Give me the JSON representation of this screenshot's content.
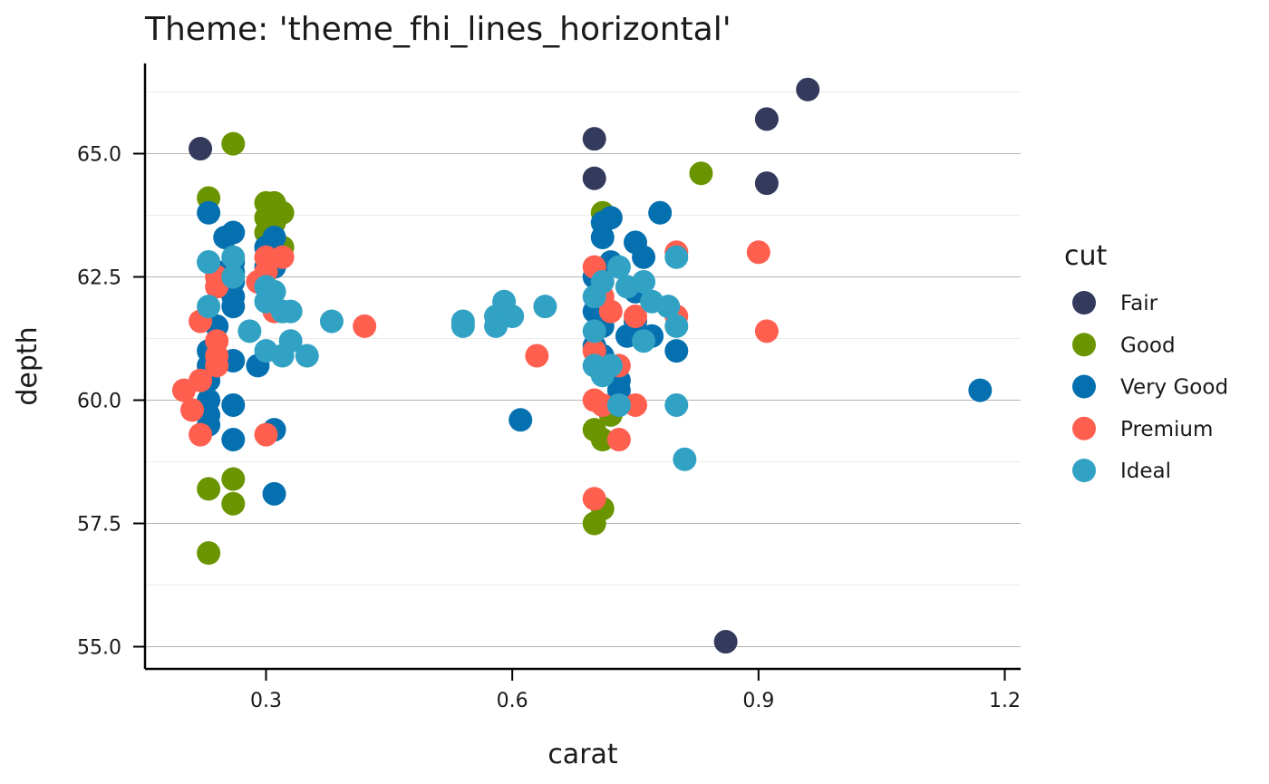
{
  "chart_data": {
    "type": "scatter",
    "title": "Theme: 'theme_fhi_lines_horizontal'",
    "xlabel": "carat",
    "ylabel": "depth",
    "xlim": [
      0.15,
      1.22
    ],
    "ylim": [
      54.6,
      66.7
    ],
    "x_ticks": [
      0.3,
      0.6,
      0.9,
      1.2
    ],
    "x_tick_labels": [
      "0.3",
      "0.6",
      "0.9",
      "1.2"
    ],
    "y_ticks": [
      55.0,
      57.5,
      60.0,
      62.5,
      65.0
    ],
    "y_tick_labels": [
      "55.0",
      "57.5",
      "60.0",
      "62.5",
      "65.0"
    ],
    "y_minor_gridlines": [
      56.25,
      58.75,
      61.25,
      63.75,
      66.25
    ],
    "grid": "horizontal lines only",
    "legend": {
      "title": "cut",
      "position": "right"
    },
    "series": [
      {
        "name": "Fair",
        "color": "#333a5c",
        "points": [
          [
            0.22,
            65.1
          ],
          [
            0.7,
            65.3
          ],
          [
            0.7,
            64.5
          ],
          [
            0.86,
            55.1
          ],
          [
            0.91,
            65.7
          ],
          [
            0.91,
            64.4
          ],
          [
            0.96,
            66.3
          ]
        ]
      },
      {
        "name": "Good",
        "color": "#6a9500",
        "points": [
          [
            0.23,
            56.9
          ],
          [
            0.23,
            58.2
          ],
          [
            0.23,
            64.1
          ],
          [
            0.26,
            57.9
          ],
          [
            0.26,
            58.4
          ],
          [
            0.26,
            65.2
          ],
          [
            0.3,
            64.0
          ],
          [
            0.3,
            63.7
          ],
          [
            0.3,
            63.4
          ],
          [
            0.31,
            64.0
          ],
          [
            0.31,
            63.6
          ],
          [
            0.32,
            63.8
          ],
          [
            0.32,
            63.1
          ],
          [
            0.7,
            57.5
          ],
          [
            0.7,
            59.4
          ],
          [
            0.71,
            57.8
          ],
          [
            0.71,
            59.2
          ],
          [
            0.71,
            63.8
          ],
          [
            0.72,
            59.7
          ],
          [
            0.83,
            64.6
          ]
        ]
      },
      {
        "name": "Very Good",
        "color": "#0570b0",
        "points": [
          [
            0.23,
            63.8
          ],
          [
            0.23,
            62.8
          ],
          [
            0.23,
            61.0
          ],
          [
            0.23,
            60.7
          ],
          [
            0.23,
            60.4
          ],
          [
            0.23,
            60.0
          ],
          [
            0.23,
            59.7
          ],
          [
            0.23,
            59.5
          ],
          [
            0.24,
            62.6
          ],
          [
            0.24,
            61.5
          ],
          [
            0.24,
            60.9
          ],
          [
            0.25,
            63.3
          ],
          [
            0.25,
            62.3
          ],
          [
            0.26,
            63.4
          ],
          [
            0.26,
            62.8
          ],
          [
            0.26,
            62.6
          ],
          [
            0.26,
            62.4
          ],
          [
            0.26,
            62.1
          ],
          [
            0.26,
            61.9
          ],
          [
            0.26,
            60.8
          ],
          [
            0.26,
            59.9
          ],
          [
            0.26,
            59.2
          ],
          [
            0.29,
            60.7
          ],
          [
            0.3,
            63.1
          ],
          [
            0.3,
            62.7
          ],
          [
            0.31,
            63.3
          ],
          [
            0.31,
            62.7
          ],
          [
            0.31,
            59.4
          ],
          [
            0.31,
            58.1
          ],
          [
            0.32,
            61.8
          ],
          [
            0.61,
            59.6
          ],
          [
            0.7,
            62.5
          ],
          [
            0.7,
            61.8
          ],
          [
            0.7,
            61.1
          ],
          [
            0.71,
            63.6
          ],
          [
            0.71,
            63.3
          ],
          [
            0.71,
            62.6
          ],
          [
            0.71,
            61.5
          ],
          [
            0.71,
            60.9
          ],
          [
            0.72,
            63.7
          ],
          [
            0.72,
            62.8
          ],
          [
            0.72,
            60.6
          ],
          [
            0.73,
            60.4
          ],
          [
            0.73,
            60.2
          ],
          [
            0.73,
            59.9
          ],
          [
            0.74,
            61.3
          ],
          [
            0.75,
            63.2
          ],
          [
            0.75,
            62.2
          ],
          [
            0.75,
            61.6
          ],
          [
            0.76,
            62.9
          ],
          [
            0.77,
            61.3
          ],
          [
            0.78,
            63.8
          ],
          [
            0.8,
            61.0
          ],
          [
            1.17,
            60.2
          ]
        ]
      },
      {
        "name": "Premium",
        "color": "#ff5f4f",
        "points": [
          [
            0.2,
            60.2
          ],
          [
            0.21,
            59.8
          ],
          [
            0.22,
            61.6
          ],
          [
            0.22,
            60.4
          ],
          [
            0.22,
            59.3
          ],
          [
            0.24,
            62.5
          ],
          [
            0.24,
            62.3
          ],
          [
            0.24,
            61.2
          ],
          [
            0.24,
            60.9
          ],
          [
            0.24,
            60.7
          ],
          [
            0.29,
            62.4
          ],
          [
            0.3,
            62.9
          ],
          [
            0.3,
            62.6
          ],
          [
            0.3,
            62.3
          ],
          [
            0.3,
            59.3
          ],
          [
            0.31,
            61.8
          ],
          [
            0.32,
            62.9
          ],
          [
            0.42,
            61.5
          ],
          [
            0.63,
            60.9
          ],
          [
            0.7,
            62.7
          ],
          [
            0.7,
            61.0
          ],
          [
            0.7,
            60.0
          ],
          [
            0.7,
            58.0
          ],
          [
            0.71,
            62.1
          ],
          [
            0.71,
            59.9
          ],
          [
            0.72,
            61.8
          ],
          [
            0.73,
            60.7
          ],
          [
            0.73,
            59.2
          ],
          [
            0.75,
            61.7
          ],
          [
            0.75,
            59.9
          ],
          [
            0.8,
            63.0
          ],
          [
            0.8,
            61.7
          ],
          [
            0.9,
            63.0
          ],
          [
            0.91,
            61.4
          ]
        ]
      },
      {
        "name": "Ideal",
        "color": "#31a2c4",
        "points": [
          [
            0.23,
            62.8
          ],
          [
            0.23,
            61.9
          ],
          [
            0.26,
            62.9
          ],
          [
            0.26,
            62.5
          ],
          [
            0.28,
            61.4
          ],
          [
            0.3,
            62.3
          ],
          [
            0.3,
            62.0
          ],
          [
            0.3,
            61.0
          ],
          [
            0.31,
            62.2
          ],
          [
            0.32,
            61.8
          ],
          [
            0.32,
            60.9
          ],
          [
            0.33,
            61.8
          ],
          [
            0.33,
            61.2
          ],
          [
            0.35,
            60.9
          ],
          [
            0.38,
            61.6
          ],
          [
            0.54,
            61.6
          ],
          [
            0.54,
            61.5
          ],
          [
            0.58,
            61.7
          ],
          [
            0.58,
            61.5
          ],
          [
            0.59,
            62.0
          ],
          [
            0.6,
            61.7
          ],
          [
            0.64,
            61.9
          ],
          [
            0.7,
            62.1
          ],
          [
            0.7,
            61.4
          ],
          [
            0.7,
            60.7
          ],
          [
            0.71,
            62.4
          ],
          [
            0.71,
            60.5
          ],
          [
            0.72,
            60.7
          ],
          [
            0.73,
            62.7
          ],
          [
            0.74,
            62.3
          ],
          [
            0.76,
            62.4
          ],
          [
            0.76,
            61.2
          ],
          [
            0.77,
            62.0
          ],
          [
            0.79,
            61.9
          ],
          [
            0.8,
            62.9
          ],
          [
            0.8,
            61.5
          ],
          [
            0.8,
            59.9
          ],
          [
            0.81,
            58.8
          ],
          [
            0.73,
            59.9
          ]
        ]
      }
    ]
  }
}
